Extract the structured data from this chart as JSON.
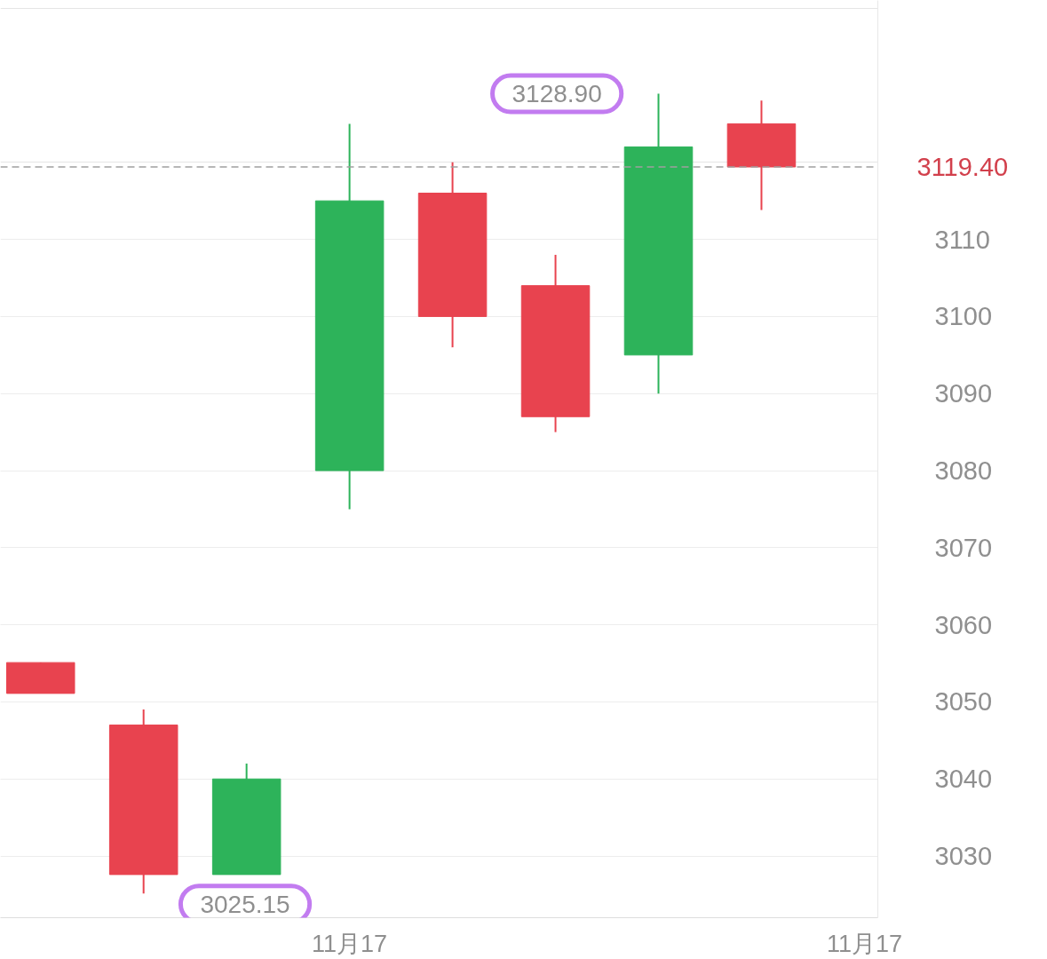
{
  "chart_data": {
    "type": "candlestick",
    "categories": [
      null,
      null,
      null,
      "11月17",
      null,
      null,
      null,
      null,
      "11月17"
    ],
    "ohlc": [
      [
        3051.1,
        3055.1,
        3051.1,
        3055.1
      ],
      [
        3027.6,
        3049.0,
        3025.15,
        3047.0
      ],
      [
        3040.0,
        3042.0,
        3027.6,
        3027.6
      ],
      [
        3115.0,
        3125.0,
        3075.0,
        3080.0
      ],
      [
        3100.0,
        3120.0,
        3096.0,
        3116.0
      ],
      [
        3087.0,
        3108.0,
        3085.0,
        3104.0
      ],
      [
        3122.0,
        3128.9,
        3090.0,
        3095.0
      ],
      [
        3119.4,
        3128.0,
        3113.8,
        3125.0
      ],
      null
    ],
    "colors": [
      "#e8434f",
      "#e8434f",
      "#2db35a",
      "#2db35a",
      "#e8434f",
      "#e8434f",
      "#2db35a",
      "#e8434f",
      null
    ],
    "ylim": [
      3022,
      3141
    ],
    "yticks": [
      3030,
      3040,
      3050,
      3060,
      3070,
      3080,
      3090,
      3100,
      3110
    ],
    "grid": "y",
    "ref_lines": [
      {
        "axis": "y",
        "value": 3119.4,
        "label": "3119.40",
        "line_style": "dashed"
      }
    ],
    "annotations": [
      "3128.90",
      "3025.15"
    ]
  }
}
